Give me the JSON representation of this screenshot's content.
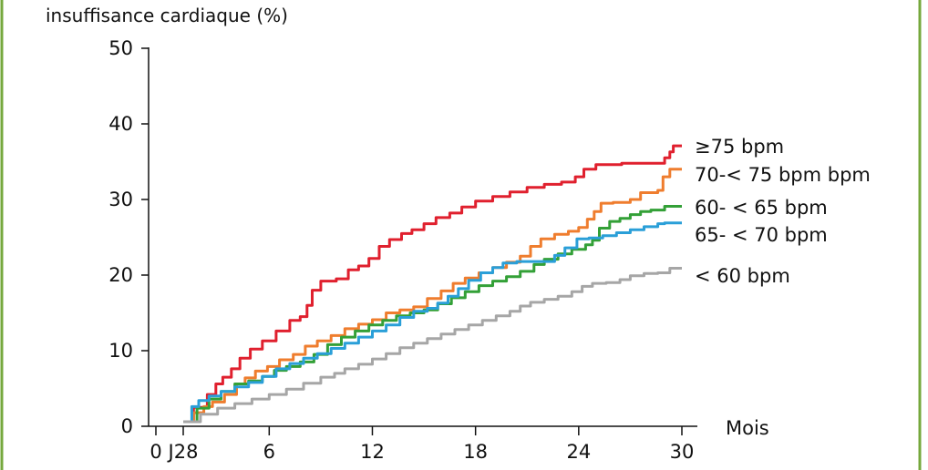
{
  "colors": {
    "frame": "#76a83d",
    "axis": "#111111",
    "hr_ge75": "#e0202e",
    "hr_70_75": "#ef7d2e",
    "hr_60_65": "#33a037",
    "hr_65_70": "#2a9fd8",
    "hr_lt60": "#a6a6a6"
  },
  "chart_data": {
    "type": "line",
    "title": "",
    "ylabel": "insuffisance cardiaque (%)",
    "xlabel": "Mois",
    "ylim": [
      0,
      50
    ],
    "xlim": [
      0,
      30
    ],
    "yticks": [
      0,
      10,
      20,
      30,
      40,
      50
    ],
    "yticklabels": [
      "0",
      "10",
      "20",
      "30",
      "40",
      "50"
    ],
    "xticks": [
      0,
      1,
      6,
      12,
      18,
      24,
      30
    ],
    "xticklabels": [
      "0",
      "J28",
      "6",
      "12",
      "18",
      "24",
      "30"
    ],
    "grid": false,
    "legend": "right",
    "series": [
      {
        "name": "≥75 bpm",
        "color": "#e0202e",
        "points": [
          [
            1,
            0.6
          ],
          [
            1.6,
            2.5
          ],
          [
            2.4,
            4.2
          ],
          [
            2.9,
            5.6
          ],
          [
            3.3,
            6.5
          ],
          [
            3.8,
            7.6
          ],
          [
            4.3,
            9.0
          ],
          [
            4.9,
            10.2
          ],
          [
            5.6,
            11.3
          ],
          [
            6.4,
            12.6
          ],
          [
            7.2,
            14.0
          ],
          [
            7.8,
            14.5
          ],
          [
            8.2,
            16.0
          ],
          [
            8.5,
            18.0
          ],
          [
            9.0,
            19.2
          ],
          [
            9.9,
            19.5
          ],
          [
            10.6,
            20.7
          ],
          [
            11.2,
            21.2
          ],
          [
            11.8,
            22.2
          ],
          [
            12.4,
            23.8
          ],
          [
            13.0,
            24.7
          ],
          [
            13.7,
            25.5
          ],
          [
            14.3,
            26.0
          ],
          [
            15.0,
            26.8
          ],
          [
            15.7,
            27.6
          ],
          [
            16.5,
            28.2
          ],
          [
            17.2,
            29.0
          ],
          [
            18.0,
            29.8
          ],
          [
            19.0,
            30.4
          ],
          [
            20.0,
            31.0
          ],
          [
            21.0,
            31.6
          ],
          [
            22.0,
            32.0
          ],
          [
            23.0,
            32.3
          ],
          [
            23.8,
            33.0
          ],
          [
            24.3,
            34.0
          ],
          [
            25.0,
            34.6
          ],
          [
            26.5,
            34.8
          ],
          [
            28.0,
            34.8
          ],
          [
            29.0,
            35.5
          ],
          [
            29.3,
            36.3
          ],
          [
            29.5,
            37.1
          ],
          [
            30.0,
            37.1
          ]
        ]
      },
      {
        "name": "70-< 75 bpm bpm",
        "color": "#ef7d2e",
        "points": [
          [
            1,
            0.6
          ],
          [
            1.6,
            1.8
          ],
          [
            2.2,
            2.6
          ],
          [
            2.7,
            3.2
          ],
          [
            3.4,
            4.2
          ],
          [
            4.1,
            5.6
          ],
          [
            4.6,
            6.4
          ],
          [
            5.2,
            7.3
          ],
          [
            5.9,
            7.9
          ],
          [
            6.6,
            8.8
          ],
          [
            7.4,
            9.5
          ],
          [
            8.1,
            10.6
          ],
          [
            8.8,
            11.3
          ],
          [
            9.6,
            12.0
          ],
          [
            10.4,
            12.9
          ],
          [
            11.2,
            13.5
          ],
          [
            12.0,
            14.1
          ],
          [
            12.8,
            15.0
          ],
          [
            13.6,
            15.4
          ],
          [
            14.4,
            15.8
          ],
          [
            15.2,
            16.9
          ],
          [
            16.0,
            17.9
          ],
          [
            16.7,
            18.9
          ],
          [
            17.4,
            19.6
          ],
          [
            18.2,
            20.3
          ],
          [
            19.0,
            21.0
          ],
          [
            19.8,
            21.7
          ],
          [
            20.6,
            22.5
          ],
          [
            21.2,
            23.8
          ],
          [
            21.8,
            24.8
          ],
          [
            22.6,
            25.4
          ],
          [
            23.4,
            25.8
          ],
          [
            24.0,
            26.3
          ],
          [
            24.5,
            27.4
          ],
          [
            24.9,
            28.4
          ],
          [
            25.3,
            29.5
          ],
          [
            26.0,
            29.6
          ],
          [
            27.0,
            30.0
          ],
          [
            27.6,
            30.9
          ],
          [
            28.6,
            31.2
          ],
          [
            28.9,
            33.0
          ],
          [
            29.3,
            34.0
          ],
          [
            30.0,
            34.0
          ]
        ]
      },
      {
        "name": "60- < 65 bpm",
        "color": "#33a037",
        "points": [
          [
            1,
            0.6
          ],
          [
            1.8,
            2.4
          ],
          [
            2.5,
            3.6
          ],
          [
            3.2,
            4.6
          ],
          [
            4.0,
            5.6
          ],
          [
            4.8,
            6.0
          ],
          [
            5.6,
            6.6
          ],
          [
            6.3,
            7.4
          ],
          [
            7.0,
            7.9
          ],
          [
            7.8,
            8.5
          ],
          [
            8.6,
            9.5
          ],
          [
            9.4,
            10.8
          ],
          [
            10.2,
            11.8
          ],
          [
            11.0,
            12.6
          ],
          [
            11.8,
            13.4
          ],
          [
            12.6,
            14.0
          ],
          [
            13.4,
            14.6
          ],
          [
            14.2,
            15.0
          ],
          [
            15.0,
            15.4
          ],
          [
            15.8,
            16.2
          ],
          [
            16.6,
            17.0
          ],
          [
            17.4,
            17.8
          ],
          [
            18.2,
            18.6
          ],
          [
            19.0,
            19.2
          ],
          [
            19.8,
            19.8
          ],
          [
            20.6,
            20.5
          ],
          [
            21.4,
            21.4
          ],
          [
            22.0,
            22.1
          ],
          [
            22.8,
            22.8
          ],
          [
            23.6,
            23.4
          ],
          [
            24.4,
            24.0
          ],
          [
            24.8,
            24.6
          ],
          [
            25.2,
            26.2
          ],
          [
            25.8,
            27.1
          ],
          [
            26.4,
            27.5
          ],
          [
            27.0,
            28.0
          ],
          [
            27.6,
            28.4
          ],
          [
            28.2,
            28.6
          ],
          [
            29.0,
            29.1
          ],
          [
            30.0,
            29.1
          ]
        ]
      },
      {
        "name": "65- < 70 bpm",
        "color": "#2a9fd8",
        "points": [
          [
            1,
            0.6
          ],
          [
            1.5,
            2.6
          ],
          [
            1.9,
            3.4
          ],
          [
            2.5,
            4.0
          ],
          [
            3.2,
            4.6
          ],
          [
            4.0,
            5.2
          ],
          [
            4.8,
            5.8
          ],
          [
            5.6,
            6.6
          ],
          [
            6.4,
            7.6
          ],
          [
            7.2,
            8.3
          ],
          [
            8.0,
            9.0
          ],
          [
            8.8,
            9.6
          ],
          [
            9.6,
            10.3
          ],
          [
            10.4,
            11.0
          ],
          [
            11.2,
            11.8
          ],
          [
            12.0,
            12.6
          ],
          [
            12.8,
            13.4
          ],
          [
            13.6,
            14.4
          ],
          [
            14.4,
            15.2
          ],
          [
            15.2,
            15.6
          ],
          [
            15.8,
            16.3
          ],
          [
            16.4,
            17.2
          ],
          [
            17.0,
            18.2
          ],
          [
            17.6,
            19.3
          ],
          [
            18.3,
            20.3
          ],
          [
            19.0,
            21.0
          ],
          [
            19.6,
            21.6
          ],
          [
            20.4,
            21.8
          ],
          [
            21.2,
            21.8
          ],
          [
            22.0,
            21.8
          ],
          [
            22.6,
            22.6
          ],
          [
            23.2,
            23.6
          ],
          [
            23.9,
            24.8
          ],
          [
            24.6,
            24.9
          ],
          [
            25.4,
            25.2
          ],
          [
            26.2,
            25.6
          ],
          [
            27.0,
            26.0
          ],
          [
            27.8,
            26.4
          ],
          [
            28.6,
            26.8
          ],
          [
            29.0,
            26.9
          ],
          [
            30.0,
            26.9
          ]
        ]
      },
      {
        "name": "< 60 bpm",
        "color": "#a6a6a6",
        "points": [
          [
            1,
            0.6
          ],
          [
            2.0,
            1.6
          ],
          [
            3.0,
            2.4
          ],
          [
            4.0,
            3.0
          ],
          [
            5.0,
            3.6
          ],
          [
            6.0,
            4.2
          ],
          [
            7.0,
            4.9
          ],
          [
            8.0,
            5.7
          ],
          [
            9.0,
            6.5
          ],
          [
            9.8,
            7.0
          ],
          [
            10.4,
            7.6
          ],
          [
            11.2,
            8.2
          ],
          [
            12.0,
            8.9
          ],
          [
            12.8,
            9.6
          ],
          [
            13.6,
            10.4
          ],
          [
            14.4,
            11.0
          ],
          [
            15.2,
            11.6
          ],
          [
            16.0,
            12.2
          ],
          [
            16.8,
            12.8
          ],
          [
            17.6,
            13.4
          ],
          [
            18.4,
            14.0
          ],
          [
            19.2,
            14.6
          ],
          [
            20.0,
            15.2
          ],
          [
            20.6,
            15.9
          ],
          [
            21.2,
            16.4
          ],
          [
            22.0,
            16.8
          ],
          [
            22.8,
            17.2
          ],
          [
            23.6,
            17.8
          ],
          [
            24.2,
            18.5
          ],
          [
            24.8,
            18.9
          ],
          [
            25.6,
            19.0
          ],
          [
            26.4,
            19.4
          ],
          [
            27.0,
            19.9
          ],
          [
            27.8,
            20.2
          ],
          [
            28.6,
            20.3
          ],
          [
            29.0,
            20.3
          ],
          [
            29.3,
            20.9
          ],
          [
            30.0,
            20.9
          ]
        ]
      }
    ]
  }
}
